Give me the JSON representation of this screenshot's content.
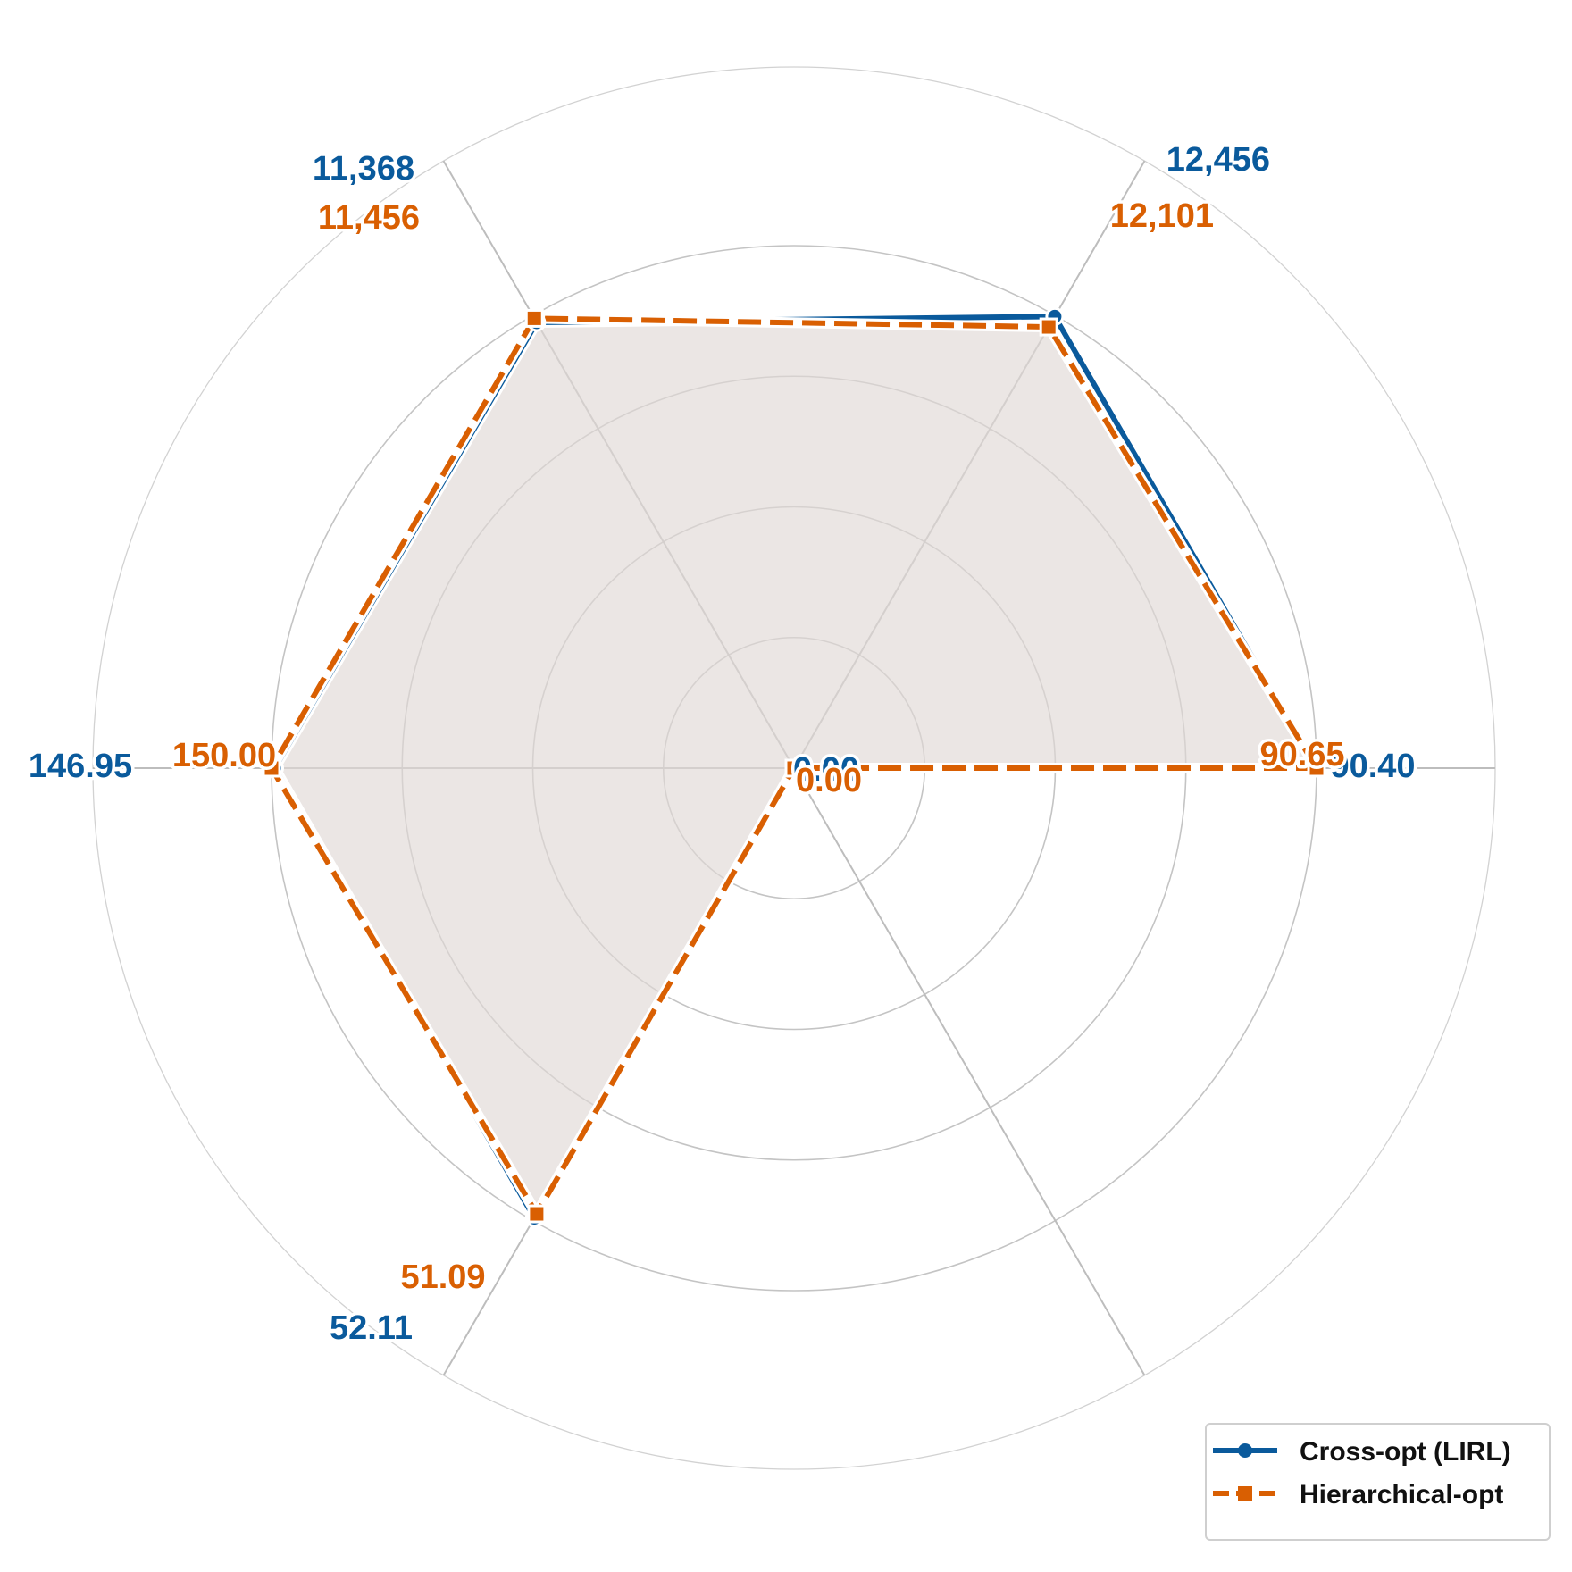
{
  "chart_data": {
    "type": "radar",
    "axes_count": 6,
    "series": [
      {
        "name": "Cross-opt (LIRL)",
        "color": "#0a5a9c",
        "line_style": "solid",
        "marker": "circle",
        "normalized_values": [
          1.0,
          0.998,
          0.985,
          0.994,
          0.994,
          0.0
        ],
        "labels": [
          "90.40",
          "12,456",
          "11,368",
          "146.95",
          "52.11",
          "0.00"
        ]
      },
      {
        "name": "Hierarchical-opt",
        "color": "#d95f02",
        "line_style": "dashed",
        "marker": "square",
        "normalized_values": [
          1.0,
          0.975,
          0.994,
          1.0,
          0.985,
          0.0
        ],
        "labels": [
          "90.65",
          "12,101",
          "11,456",
          "150.00",
          "51.09",
          "0.00"
        ]
      }
    ],
    "fill_color": "#e0d9d5",
    "grid_rings": 4,
    "grid": true,
    "legend_position": "bottom-right"
  }
}
